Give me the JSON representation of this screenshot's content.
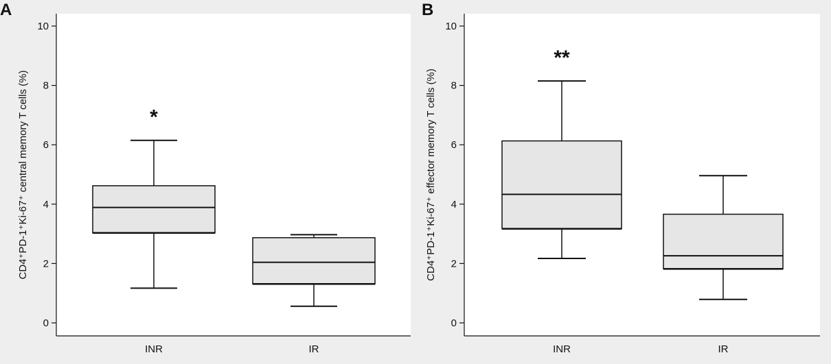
{
  "colors": {
    "background": "#eeeeee",
    "plot_area": "#ffffff",
    "box_fill": "#e6e6e6",
    "stroke": "#111111"
  },
  "chart_data": [
    {
      "type": "boxplot",
      "panel": "A",
      "ylabel": "CD4⁺PD-1⁺Ki-67⁺ central memory T cells (%)",
      "ylim": [
        0,
        10
      ],
      "yticks": [
        0,
        2,
        4,
        6,
        8,
        10
      ],
      "grid": false,
      "categories": [
        "INR",
        "IR"
      ],
      "boxes": [
        {
          "category": "INR",
          "min": 1.17,
          "q1": 3.03,
          "median": 3.89,
          "q3": 4.62,
          "max": 6.15,
          "significance": "*"
        },
        {
          "category": "IR",
          "min": 0.56,
          "q1": 1.31,
          "median": 2.04,
          "q3": 2.87,
          "max": 2.97,
          "significance": ""
        }
      ]
    },
    {
      "type": "boxplot",
      "panel": "B",
      "ylabel": "CD4⁺PD-1⁺Ki-67⁺ effector memory T cells (%)",
      "ylim": [
        0,
        10
      ],
      "yticks": [
        0,
        2,
        4,
        6,
        8,
        10
      ],
      "grid": false,
      "categories": [
        "INR",
        "IR"
      ],
      "boxes": [
        {
          "category": "INR",
          "min": 2.17,
          "q1": 3.17,
          "median": 4.33,
          "q3": 6.13,
          "max": 8.15,
          "significance": "**"
        },
        {
          "category": "IR",
          "min": 0.79,
          "q1": 1.82,
          "median": 2.26,
          "q3": 3.66,
          "max": 4.96,
          "significance": ""
        }
      ]
    }
  ]
}
